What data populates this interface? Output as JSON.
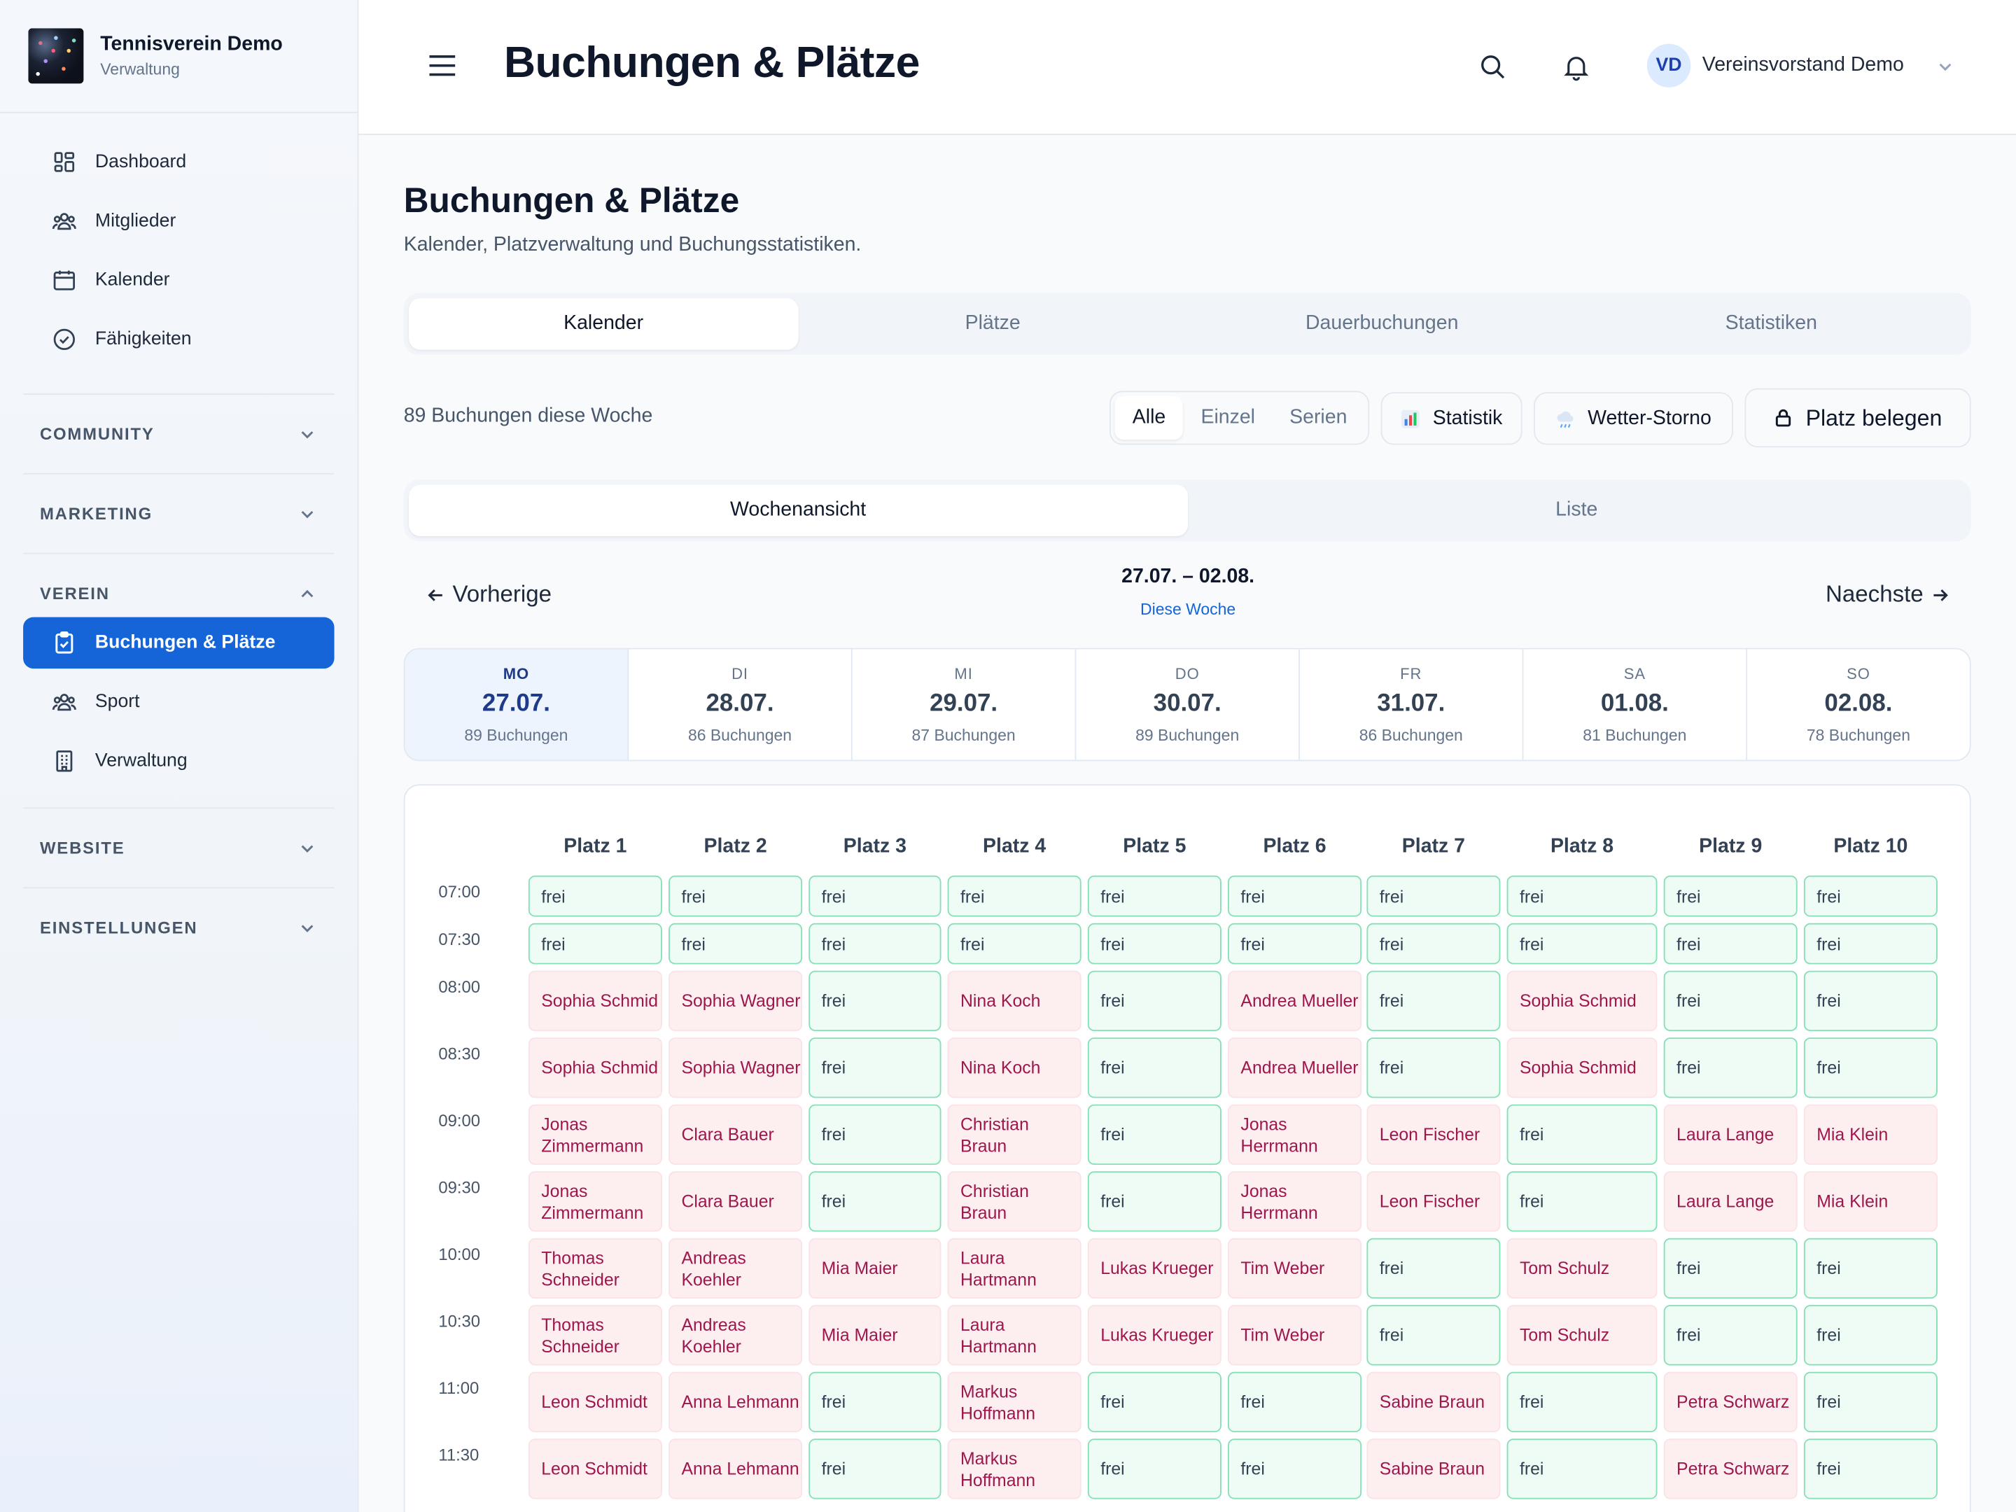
{
  "brand": {
    "title": "Tennisverein Demo",
    "subtitle": "Verwaltung"
  },
  "nav": {
    "main": [
      {
        "label": "Dashboard",
        "icon": "dashboard-icon"
      },
      {
        "label": "Mitglieder",
        "icon": "users-icon"
      },
      {
        "label": "Kalender",
        "icon": "calendar-icon"
      },
      {
        "label": "Fähigkeiten",
        "icon": "check-circle-icon"
      }
    ],
    "sections": {
      "community": "COMMUNITY",
      "marketing": "MARKETING",
      "verein": "VEREIN",
      "website": "WEBSITE",
      "einstellungen": "EINSTELLUNGEN"
    },
    "verein_items": [
      {
        "label": "Buchungen & Plätze",
        "icon": "clipboard-check-icon",
        "active": true
      },
      {
        "label": "Sport",
        "icon": "users-icon"
      },
      {
        "label": "Verwaltung",
        "icon": "building-icon"
      }
    ]
  },
  "header": {
    "title": "Buchungen & Plätze",
    "user_initials": "VD",
    "user_name": "Vereinsvorstand Demo"
  },
  "page": {
    "title": "Buchungen & Plätze",
    "subtitle": "Kalender, Platzverwaltung und Buchungsstatistiken."
  },
  "tabs": [
    "Kalender",
    "Plätze",
    "Dauerbuchungen",
    "Statistiken"
  ],
  "toolbar": {
    "count": "89 Buchungen diese Woche",
    "filters": [
      "Alle",
      "Einzel",
      "Serien"
    ],
    "stat_label": "Statistik",
    "storno_label": "Wetter-Storno",
    "book_label": "Platz belegen"
  },
  "view_tabs": [
    "Wochenansicht",
    "Liste"
  ],
  "week": {
    "prev": "Vorherige",
    "next": "Naechste",
    "range": "27.07. – 02.08.",
    "this_week": "Diese Woche"
  },
  "days": [
    {
      "name": "MO",
      "date": "27.07.",
      "count": "89 Buchungen"
    },
    {
      "name": "DI",
      "date": "28.07.",
      "count": "86 Buchungen"
    },
    {
      "name": "MI",
      "date": "29.07.",
      "count": "87 Buchungen"
    },
    {
      "name": "DO",
      "date": "30.07.",
      "count": "89 Buchungen"
    },
    {
      "name": "FR",
      "date": "31.07.",
      "count": "86 Buchungen"
    },
    {
      "name": "SA",
      "date": "01.08.",
      "count": "81 Buchungen"
    },
    {
      "name": "SO",
      "date": "02.08.",
      "count": "78 Buchungen"
    }
  ],
  "courts": [
    "Platz 1",
    "Platz 2",
    "Platz 3",
    "Platz 4",
    "Platz 5",
    "Platz 6",
    "Platz 7",
    "Platz 8",
    "Platz 9",
    "Platz 10"
  ],
  "slots": [
    {
      "time": "07:00",
      "cells": [
        "frei",
        "frei",
        "frei",
        "frei",
        "frei",
        "frei",
        "frei",
        "frei",
        "frei",
        "frei"
      ]
    },
    {
      "time": "07:30",
      "cells": [
        "frei",
        "frei",
        "frei",
        "frei",
        "frei",
        "frei",
        "frei",
        "frei",
        "frei",
        "frei"
      ]
    },
    {
      "time": "08:00",
      "cells": [
        "Sophia Schmid",
        "Sophia Wagner",
        "frei",
        "Nina Koch",
        "frei",
        "Andrea Mueller",
        "frei",
        "Sophia Schmid",
        "frei",
        "frei"
      ]
    },
    {
      "time": "08:30",
      "cells": [
        "Sophia Schmid",
        "Sophia Wagner",
        "frei",
        "Nina Koch",
        "frei",
        "Andrea Mueller",
        "frei",
        "Sophia Schmid",
        "frei",
        "frei"
      ]
    },
    {
      "time": "09:00",
      "cells": [
        "Jonas Zimmermann",
        "Clara Bauer",
        "frei",
        "Christian Braun",
        "frei",
        "Jonas Herrmann",
        "Leon Fischer",
        "frei",
        "Laura Lange",
        "Mia Klein"
      ]
    },
    {
      "time": "09:30",
      "cells": [
        "Jonas Zimmermann",
        "Clara Bauer",
        "frei",
        "Christian Braun",
        "frei",
        "Jonas Herrmann",
        "Leon Fischer",
        "frei",
        "Laura Lange",
        "Mia Klein"
      ]
    },
    {
      "time": "10:00",
      "cells": [
        "Thomas Schneider",
        "Andreas Koehler",
        "Mia Maier",
        "Laura Hartmann",
        "Lukas Krueger",
        "Tim Weber",
        "frei",
        "Tom Schulz",
        "frei",
        "frei"
      ]
    },
    {
      "time": "10:30",
      "cells": [
        "Thomas Schneider",
        "Andreas Koehler",
        "Mia Maier",
        "Laura Hartmann",
        "Lukas Krueger",
        "Tim Weber",
        "frei",
        "Tom Schulz",
        "frei",
        "frei"
      ]
    },
    {
      "time": "11:00",
      "cells": [
        "Leon Schmidt",
        "Anna Lehmann",
        "frei",
        "Markus Hoffmann",
        "frei",
        "frei",
        "Sabine Braun",
        "frei",
        "Petra Schwarz",
        "frei"
      ]
    },
    {
      "time": "11:30",
      "cells": [
        "Leon Schmidt",
        "Anna Lehmann",
        "frei",
        "Markus Hoffmann",
        "frei",
        "frei",
        "Sabine Braun",
        "frei",
        "Petra Schwarz",
        "frei"
      ]
    }
  ],
  "colors": {
    "accent": "#1565d8",
    "free_bg": "#eefcf5",
    "free_border": "#86e0b5",
    "booked_bg": "#fdeef0",
    "booked_text": "#9d174d"
  }
}
